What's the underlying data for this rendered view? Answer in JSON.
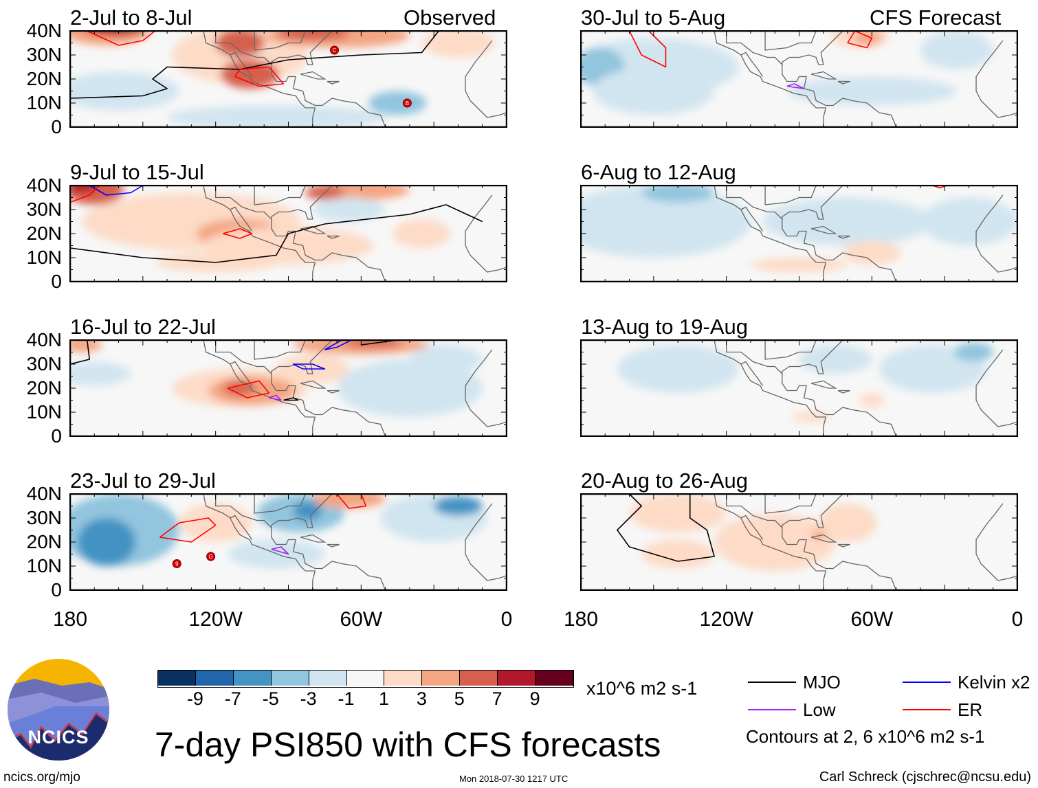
{
  "panels_left_header": "Observed",
  "panels_right_header": "CFS Forecast",
  "lat_labels": [
    "40N",
    "30N",
    "20N",
    "10N",
    "0"
  ],
  "lon_labels": [
    "180",
    "120W",
    "60W",
    "0"
  ],
  "palette": {
    "-9": "#0a3161",
    "-7": "#2166ac",
    "-5": "#4393c3",
    "-3": "#92c5de",
    "-1": "#d1e5f0",
    "0": "#f7f7f7",
    "1": "#fddbc7",
    "3": "#f4a582",
    "5": "#d6604d",
    "7": "#b2182b",
    "9": "#67001f"
  },
  "contour_colors": {
    "MJO": "#000000",
    "Kelvin": "#0000ff",
    "Low": "#a020f0",
    "ER": "#ff0000"
  },
  "panels": [
    {
      "title": "2-Jul to 8-Jul",
      "blobs": [
        [
          -110,
          30,
          28,
          12,
          1
        ],
        [
          -160,
          15,
          25,
          8,
          -1
        ],
        [
          -95,
          4,
          45,
          5,
          -1
        ],
        [
          -45,
          10,
          12,
          5,
          -3
        ],
        [
          -165,
          40,
          18,
          6,
          3
        ],
        [
          -162,
          41,
          12,
          3,
          7
        ],
        [
          -106,
          22,
          12,
          6,
          5
        ],
        [
          -110,
          35,
          10,
          6,
          5
        ],
        [
          -70,
          38,
          30,
          5,
          3
        ],
        [
          -80,
          39,
          15,
          3,
          5
        ],
        [
          -20,
          35,
          15,
          6,
          1
        ]
      ],
      "contours": [
        {
          "t": "MJO",
          "pts": [
            [
              -180,
              12
            ],
            [
              -150,
              13
            ],
            [
              -140,
              16
            ],
            [
              -146,
              20
            ],
            [
              -140,
              25
            ],
            [
              -110,
              24
            ],
            [
              -90,
              28
            ],
            [
              -60,
              30
            ],
            [
              -35,
              31
            ],
            [
              -28,
              40
            ]
          ]
        },
        {
          "t": "ER",
          "pts": [
            [
              -112,
              21
            ],
            [
              -102,
              17
            ],
            [
              -92,
              18
            ],
            [
              -98,
              25
            ],
            [
              -110,
              24
            ],
            [
              -112,
              21
            ]
          ]
        },
        {
          "t": "ER",
          "pts": [
            [
              -173,
              40
            ],
            [
              -160,
              34
            ],
            [
              -150,
              36
            ],
            [
              -145,
              40
            ]
          ]
        }
      ],
      "storms": [
        [
          -71,
          32,
          "C"
        ],
        [
          -41,
          10,
          "B"
        ]
      ]
    },
    {
      "title": "30-Jul to 5-Aug",
      "blobs": [
        [
          -150,
          25,
          35,
          12,
          -1
        ],
        [
          -172,
          25,
          10,
          8,
          -3
        ],
        [
          -150,
          15,
          25,
          10,
          -1
        ],
        [
          -60,
          15,
          35,
          6,
          -1
        ],
        [
          -25,
          32,
          15,
          8,
          -1
        ],
        [
          -65,
          38,
          12,
          5,
          1
        ],
        [
          -62,
          37,
          6,
          3,
          3
        ]
      ],
      "contours": [
        {
          "t": "ER",
          "pts": [
            [
              -160,
              40
            ],
            [
              -155,
              30
            ],
            [
              -145,
              25
            ],
            [
              -145,
              33
            ],
            [
              -152,
              40
            ]
          ]
        },
        {
          "t": "ER",
          "pts": [
            [
              -70,
              35
            ],
            [
              -62,
              33
            ],
            [
              -60,
              37
            ],
            [
              -67,
              40
            ],
            [
              -70,
              35
            ]
          ]
        },
        {
          "t": "Low",
          "pts": [
            [
              -95,
              17
            ],
            [
              -88,
              16
            ],
            [
              -92,
              18
            ],
            [
              -95,
              17
            ]
          ]
        }
      ],
      "storms": []
    },
    {
      "title": "9-Jul to 15-Jul",
      "blobs": [
        [
          -130,
          25,
          45,
          12,
          1
        ],
        [
          -110,
          20,
          18,
          6,
          3
        ],
        [
          -102,
          18,
          8,
          5,
          5
        ],
        [
          -170,
          38,
          12,
          6,
          5
        ],
        [
          -175,
          40,
          6,
          3,
          7
        ],
        [
          -60,
          38,
          20,
          4,
          3
        ],
        [
          -75,
          37,
          8,
          3,
          5
        ],
        [
          -90,
          15,
          35,
          8,
          1
        ],
        [
          -35,
          20,
          12,
          6,
          1
        ],
        [
          -65,
          30,
          15,
          5,
          -1
        ],
        [
          -120,
          8,
          25,
          4,
          1
        ]
      ],
      "contours": [
        {
          "t": "MJO",
          "pts": [
            [
              -180,
              14
            ],
            [
              -150,
              10
            ],
            [
              -120,
              8
            ],
            [
              -95,
              11
            ],
            [
              -90,
              20
            ],
            [
              -75,
              24
            ],
            [
              -40,
              28
            ],
            [
              -25,
              32
            ],
            [
              -10,
              25
            ]
          ]
        },
        {
          "t": "ER",
          "pts": [
            [
              -117,
              20
            ],
            [
              -110,
              18
            ],
            [
              -105,
              20
            ],
            [
              -110,
              22
            ],
            [
              -117,
              20
            ]
          ]
        },
        {
          "t": "Kelvin",
          "pts": [
            [
              -172,
              40
            ],
            [
              -165,
              36
            ],
            [
              -155,
              37
            ],
            [
              -150,
              40
            ]
          ]
        },
        {
          "t": "ER",
          "pts": [
            [
              -180,
              33
            ],
            [
              -172,
              36
            ],
            [
              -168,
              40
            ]
          ]
        }
      ],
      "storms": []
    },
    {
      "title": "6-Aug to 12-Aug",
      "blobs": [
        [
          -150,
          25,
          40,
          15,
          -1
        ],
        [
          -140,
          37,
          15,
          4,
          -3
        ],
        [
          -70,
          25,
          35,
          10,
          -1
        ],
        [
          -20,
          25,
          20,
          10,
          -1
        ],
        [
          -60,
          12,
          12,
          5,
          1
        ],
        [
          -90,
          7,
          20,
          3,
          1
        ]
      ],
      "contours": [
        {
          "t": "ER",
          "pts": [
            [
              -35,
              40
            ],
            [
              -32,
              39
            ],
            [
              -29,
              40
            ]
          ]
        }
      ],
      "storms": []
    },
    {
      "title": "16-Jul to 22-Jul",
      "blobs": [
        [
          -110,
          20,
          28,
          8,
          1
        ],
        [
          -105,
          19,
          18,
          6,
          3
        ],
        [
          -110,
          20,
          7,
          3,
          5
        ],
        [
          -60,
          38,
          28,
          4,
          3
        ],
        [
          -55,
          39,
          12,
          2,
          5
        ],
        [
          -170,
          26,
          15,
          5,
          -1
        ],
        [
          -40,
          20,
          30,
          12,
          -1
        ],
        [
          -25,
          32,
          15,
          6,
          -1
        ],
        [
          -80,
          28,
          15,
          6,
          1
        ],
        [
          -175,
          38,
          8,
          3,
          3
        ]
      ],
      "contours": [
        {
          "t": "ER",
          "pts": [
            [
              -115,
              20
            ],
            [
              -107,
              16
            ],
            [
              -98,
              18
            ],
            [
              -102,
              23
            ],
            [
              -115,
              20
            ]
          ]
        },
        {
          "t": "Kelvin",
          "pts": [
            [
              -84,
              28
            ],
            [
              -75,
              28
            ],
            [
              -80,
              30
            ],
            [
              -88,
              30
            ],
            [
              -84,
              28
            ]
          ]
        },
        {
          "t": "Kelvin",
          "pts": [
            [
              -75,
              36
            ],
            [
              -68,
              40
            ],
            [
              -64,
              40
            ],
            [
              -70,
              37
            ],
            [
              -75,
              36
            ]
          ]
        },
        {
          "t": "MJO",
          "pts": [
            [
              -180,
              30
            ],
            [
              -172,
              32
            ],
            [
              -173,
              40
            ]
          ]
        },
        {
          "t": "Low",
          "pts": [
            [
              -98,
              16
            ],
            [
              -93,
              15
            ],
            [
              -95,
              17
            ],
            [
              -98,
              16
            ]
          ]
        },
        {
          "t": "MJO",
          "pts": [
            [
              -92,
              15
            ],
            [
              -86,
              15
            ],
            [
              -88,
              16
            ],
            [
              -92,
              15
            ]
          ]
        },
        {
          "t": "MJO",
          "pts": [
            [
              -60,
              38
            ],
            [
              -45,
              40
            ]
          ]
        }
      ],
      "storms": []
    },
    {
      "title": "13-Aug to 19-Aug",
      "blobs": [
        [
          -140,
          28,
          25,
          10,
          -1
        ],
        [
          -35,
          28,
          22,
          10,
          -1
        ],
        [
          -75,
          32,
          15,
          6,
          -1
        ],
        [
          -18,
          35,
          8,
          4,
          -3
        ],
        [
          -60,
          15,
          5,
          3,
          1
        ],
        [
          -85,
          8,
          8,
          2,
          1
        ]
      ],
      "contours": [],
      "storms": []
    },
    {
      "title": "23-Jul to 29-Jul",
      "blobs": [
        [
          -160,
          25,
          25,
          15,
          -3
        ],
        [
          -165,
          20,
          12,
          10,
          -5
        ],
        [
          -85,
          32,
          18,
          8,
          -3
        ],
        [
          -82,
          33,
          6,
          4,
          -5
        ],
        [
          -30,
          30,
          22,
          10,
          -1
        ],
        [
          -20,
          35,
          10,
          4,
          -5
        ],
        [
          -120,
          28,
          15,
          8,
          1
        ],
        [
          -65,
          38,
          15,
          4,
          3
        ],
        [
          -95,
          15,
          20,
          6,
          -1
        ]
      ],
      "contours": [
        {
          "t": "ER",
          "pts": [
            [
              -143,
              22
            ],
            [
              -130,
              20
            ],
            [
              -120,
              27
            ],
            [
              -123,
              30
            ],
            [
              -135,
              28
            ],
            [
              -143,
              22
            ]
          ]
        },
        {
          "t": "ER",
          "pts": [
            [
              -70,
              40
            ],
            [
              -65,
              34
            ],
            [
              -58,
              35
            ],
            [
              -60,
              40
            ]
          ]
        },
        {
          "t": "Low",
          "pts": [
            [
              -97,
              17
            ],
            [
              -90,
              15
            ],
            [
              -93,
              18
            ],
            [
              -97,
              17
            ]
          ]
        }
      ],
      "storms": [
        [
          -136,
          11,
          "9"
        ],
        [
          -122,
          14,
          "G"
        ]
      ]
    },
    {
      "title": "20-Aug to 26-Aug",
      "blobs": [
        [
          -140,
          32,
          20,
          8,
          1
        ],
        [
          -100,
          20,
          25,
          12,
          1
        ],
        [
          -70,
          28,
          12,
          8,
          1
        ],
        [
          -82,
          23,
          3,
          2,
          3
        ],
        [
          -140,
          15,
          15,
          6,
          1
        ]
      ],
      "contours": [
        {
          "t": "MJO",
          "pts": [
            [
              -160,
              40
            ],
            [
              -155,
              35
            ],
            [
              -165,
              25
            ],
            [
              -160,
              18
            ],
            [
              -140,
              12
            ],
            [
              -125,
              14
            ],
            [
              -128,
              25
            ],
            [
              -135,
              30
            ],
            [
              -135,
              40
            ]
          ]
        }
      ],
      "storms": []
    }
  ],
  "colorbar": {
    "labels": [
      "-9",
      "-7",
      "-5",
      "-3",
      "-1",
      "1",
      "3",
      "5",
      "7",
      "9"
    ],
    "units": "x10^6 m2 s-1"
  },
  "legend": {
    "items": [
      {
        "name": "MJO",
        "color": "#000000"
      },
      {
        "name": "Kelvin x2",
        "color": "#0000ff"
      },
      {
        "name": "Low",
        "color": "#a020f0"
      },
      {
        "name": "ER",
        "color": "#ff0000"
      }
    ],
    "note": "Contours at 2, 6 x10^6 m2 s-1"
  },
  "title": "7-day PSI850 with CFS forecasts",
  "logo_text": "NCICS",
  "footer": {
    "left": "ncics.org/mjo",
    "center": "Mon 2018-07-30 1217 UTC",
    "right": "Carl Schreck (cjschrec@ncsu.edu)"
  }
}
